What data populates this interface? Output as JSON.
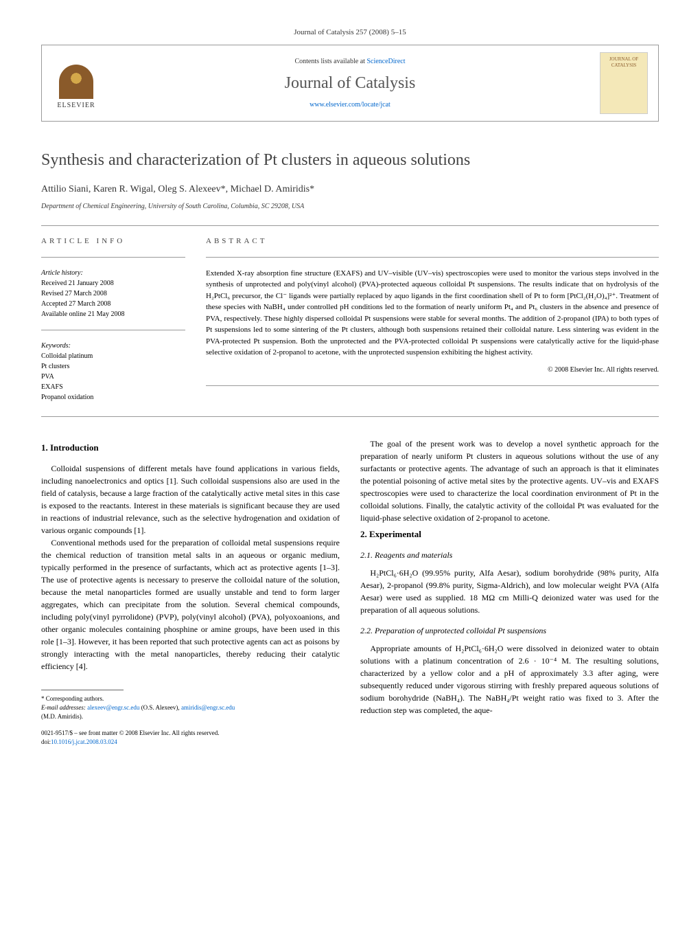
{
  "journal_ref": "Journal of Catalysis 257 (2008) 5–15",
  "header": {
    "contents_prefix": "Contents lists available at ",
    "contents_link": "ScienceDirect",
    "journal_name": "Journal of Catalysis",
    "url": "www.elsevier.com/locate/jcat",
    "publisher": "ELSEVIER",
    "cover_text": "JOURNAL OF CATALYSIS"
  },
  "article": {
    "title": "Synthesis and characterization of Pt clusters in aqueous solutions",
    "authors": "Attilio Siani, Karen R. Wigal, Oleg S. Alexeev*, Michael D. Amiridis*",
    "affiliation": "Department of Chemical Engineering, University of South Carolina, Columbia, SC 29208, USA"
  },
  "info": {
    "label": "ARTICLE INFO",
    "history_label": "Article history:",
    "received": "Received 21 January 2008",
    "revised": "Revised 27 March 2008",
    "accepted": "Accepted 27 March 2008",
    "online": "Available online 21 May 2008",
    "keywords_label": "Keywords:",
    "kw1": "Colloidal platinum",
    "kw2": "Pt clusters",
    "kw3": "PVA",
    "kw4": "EXAFS",
    "kw5": "Propanol oxidation"
  },
  "abstract": {
    "label": "ABSTRACT",
    "text": "Extended X-ray absorption fine structure (EXAFS) and UV–visible (UV–vis) spectroscopies were used to monitor the various steps involved in the synthesis of unprotected and poly(vinyl alcohol) (PVA)-protected aqueous colloidal Pt suspensions. The results indicate that on hydrolysis of the H₂PtCl₆ precursor, the Cl⁻ ligands were partially replaced by aquo ligands in the first coordination shell of Pt to form [PtCl₂(H₂O)₄]²⁺. Treatment of these species with NaBH₄ under controlled pH conditions led to the formation of nearly uniform Pt₄ and Pt₆ clusters in the absence and presence of PVA, respectively. These highly dispersed colloidal Pt suspensions were stable for several months. The addition of 2-propanol (IPA) to both types of Pt suspensions led to some sintering of the Pt clusters, although both suspensions retained their colloidal nature. Less sintering was evident in the PVA-protected Pt suspension. Both the unprotected and the PVA-protected colloidal Pt suspensions were catalytically active for the liquid-phase selective oxidation of 2-propanol to acetone, with the unprotected suspension exhibiting the highest activity.",
    "copyright": "© 2008 Elsevier Inc. All rights reserved."
  },
  "sections": {
    "intro_heading": "1. Introduction",
    "intro_p1": "Colloidal suspensions of different metals have found applications in various fields, including nanoelectronics and optics [1]. Such colloidal suspensions also are used in the field of catalysis, because a large fraction of the catalytically active metal sites in this case is exposed to the reactants. Interest in these materials is significant because they are used in reactions of industrial relevance, such as the selective hydrogenation and oxidation of various organic compounds [1].",
    "intro_p2": "Conventional methods used for the preparation of colloidal metal suspensions require the chemical reduction of transition metal salts in an aqueous or organic medium, typically performed in the presence of surfactants, which act as protective agents [1–3]. The use of protective agents is necessary to preserve the colloidal nature of the solution, because the metal nanoparticles formed are usually unstable and tend to form larger aggregates, which can precipitate from the solution. Several chemical compounds, including poly(vinyl pyrrolidone) (PVP), poly(vinyl alcohol) (PVA), polyoxoanions, and other organic molecules containing phosphine or amine groups, have been used in this role [1–3]. However, it has been reported that such protective agents can act as poisons by strongly interacting with the metal nanoparticles, thereby reducing their catalytic efficiency [4].",
    "intro_p3": "The goal of the present work was to develop a novel synthetic approach for the preparation of nearly uniform Pt clusters in aqueous solutions without the use of any surfactants or protective agents. The advantage of such an approach is that it eliminates the potential poisoning of active metal sites by the protective agents. UV–vis and EXAFS spectroscopies were used to characterize the local coordination environment of Pt in the colloidal solutions. Finally, the catalytic activity of the colloidal Pt was evaluated for the liquid-phase selective oxidation of 2-propanol to acetone.",
    "exp_heading": "2. Experimental",
    "reagents_heading": "2.1. Reagents and materials",
    "reagents_p": "H₂PtCl₆·6H₂O (99.95% purity, Alfa Aesar), sodium borohydride (98% purity, Alfa Aesar), 2-propanol (99.8% purity, Sigma-Aldrich), and low molecular weight PVA (Alfa Aesar) were used as supplied. 18 MΩ cm Milli-Q deionized water was used for the preparation of all aqueous solutions.",
    "prep_heading": "2.2. Preparation of unprotected colloidal Pt suspensions",
    "prep_p": "Appropriate amounts of H₂PtCl₆·6H₂O were dissolved in deionized water to obtain solutions with a platinum concentration of 2.6 · 10⁻⁴ M. The resulting solutions, characterized by a yellow color and a pH of approximately 3.3 after aging, were subsequently reduced under vigorous stirring with freshly prepared aqueous solutions of sodium borohydride (NaBH₄). The NaBH₄/Pt weight ratio was fixed to 3. After the reduction step was completed, the aque-"
  },
  "footnotes": {
    "corr": "* Corresponding authors.",
    "email_label": "E-mail addresses:",
    "email1": "alexeev@engr.sc.edu",
    "email1_name": "(O.S. Alexeev),",
    "email2": "amiridis@engr.sc.edu",
    "email2_name": "(M.D. Amiridis)."
  },
  "bottom": {
    "issn": "0021-9517/$ – see front matter © 2008 Elsevier Inc. All rights reserved.",
    "doi_label": "doi:",
    "doi": "10.1016/j.jcat.2008.03.024"
  }
}
